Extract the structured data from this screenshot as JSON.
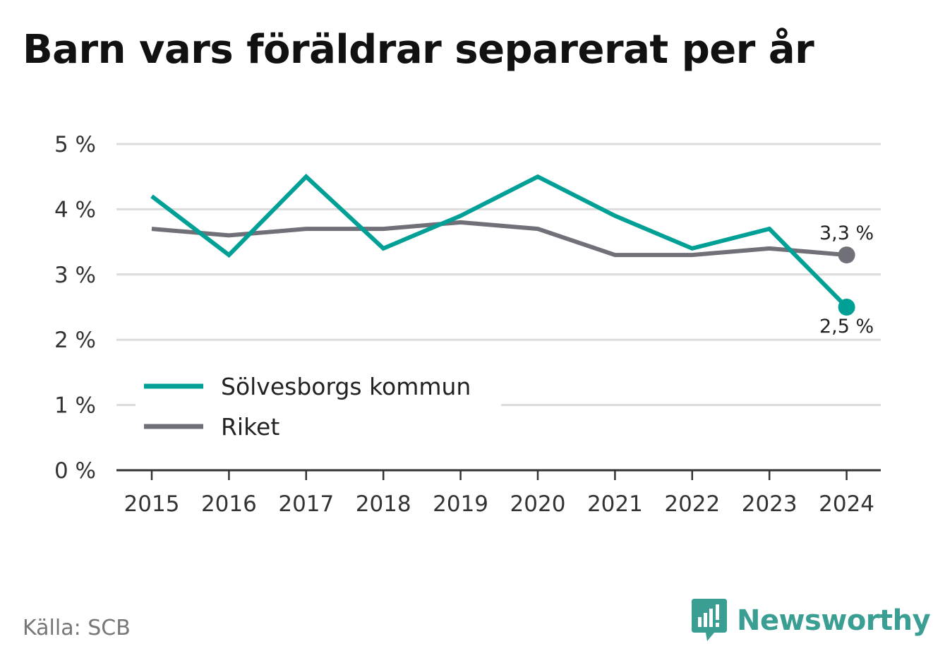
{
  "chart_data": {
    "type": "line",
    "title": "Barn vars föräldrar separerat per år",
    "categories": [
      "2015",
      "2016",
      "2017",
      "2018",
      "2019",
      "2020",
      "2021",
      "2022",
      "2023",
      "2024"
    ],
    "series": [
      {
        "name": "Sölvesborgs kommun",
        "color": "#00a096",
        "values": [
          4.2,
          3.3,
          4.5,
          3.4,
          3.9,
          4.5,
          3.9,
          3.4,
          3.7,
          2.5
        ],
        "end_label": "2,5 %"
      },
      {
        "name": "Riket",
        "color": "#707078",
        "values": [
          3.7,
          3.6,
          3.7,
          3.7,
          3.8,
          3.7,
          3.3,
          3.3,
          3.4,
          3.3
        ],
        "end_label": "3,3 %"
      }
    ],
    "ylim": [
      0,
      5
    ],
    "yticks": [
      0,
      1,
      2,
      3,
      4,
      5
    ],
    "ytick_labels": [
      "0 %",
      "1 %",
      "2 %",
      "3 %",
      "4 %",
      "5 %"
    ],
    "grid": true,
    "legend_position": "bottom-left"
  },
  "source": "Källa: SCB",
  "brand": {
    "name": "Newsworthy",
    "logo_icon": "newsworthy-logo-icon",
    "color": "#3a9e92"
  }
}
